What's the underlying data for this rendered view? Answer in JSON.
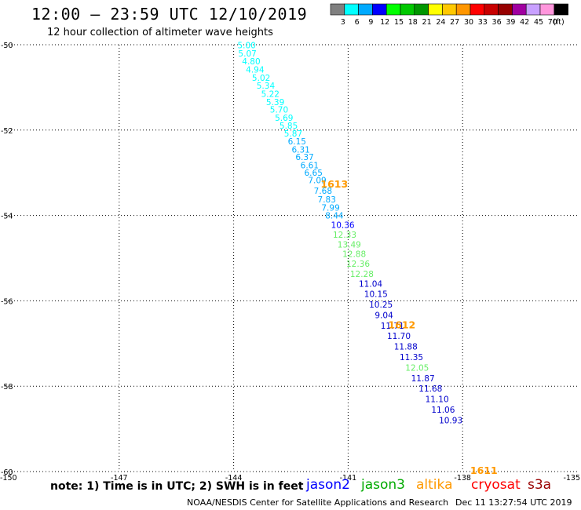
{
  "header": {
    "title": "12:00 – 23:59 UTC 12/10/2019",
    "subtitle": "12 hour collection of altimeter wave heights"
  },
  "legend": {
    "unit": "(ft)",
    "bins": [
      {
        "label": "3",
        "color": "#808080"
      },
      {
        "label": "6",
        "color": "#00ffff"
      },
      {
        "label": "9",
        "color": "#00aaff"
      },
      {
        "label": "12",
        "color": "#0000ff"
      },
      {
        "label": "15",
        "color": "#00ff00"
      },
      {
        "label": "18",
        "color": "#00c800"
      },
      {
        "label": "21",
        "color": "#009600"
      },
      {
        "label": "24",
        "color": "#ffff00"
      },
      {
        "label": "27",
        "color": "#ffc800"
      },
      {
        "label": "30",
        "color": "#ff9600"
      },
      {
        "label": "33",
        "color": "#ff0000"
      },
      {
        "label": "36",
        "color": "#c80000"
      },
      {
        "label": "39",
        "color": "#960000"
      },
      {
        "label": "42",
        "color": "#a000a0"
      },
      {
        "label": "45",
        "color": "#c8a0ff"
      },
      {
        "label": "70",
        "color": "#ff96dc"
      },
      {
        "label": "",
        "color": "#000000"
      }
    ]
  },
  "footer": {
    "note": "note:  1) Time is in UTC;  2) SWH is in feet",
    "satellites": [
      {
        "name": "jason2",
        "color": "#0000ff"
      },
      {
        "name": "jason3",
        "color": "#00aa00"
      },
      {
        "name": "altika",
        "color": "#ff9900"
      },
      {
        "name": "cryosat",
        "color": "#ff0000"
      },
      {
        "name": "s3a",
        "color": "#990000"
      }
    ],
    "credit": "NOAA/NESDIS Center for Satellite Applications and Research",
    "timestamp": "Dec 11 13:27:54 UTC 2019"
  },
  "chart_data": {
    "type": "scatter",
    "xlim": [
      -150,
      -135
    ],
    "ylim": [
      -60,
      -50
    ],
    "x_ticks": [
      "-150",
      "-147",
      "-144",
      "-141",
      "-138",
      "-135"
    ],
    "x_tick_values": [
      -150,
      -147,
      -144,
      -141,
      -138,
      -135
    ],
    "y_ticks": [
      "-50",
      "-52",
      "-54",
      "-56",
      "-58",
      "-60"
    ],
    "y_tick_values": [
      -50,
      -52,
      -54,
      -56,
      -58,
      -60
    ],
    "grid": true,
    "points": [
      {
        "lon": -143.9,
        "lat": -50.01,
        "label": "5.00",
        "color": "#00ffff"
      },
      {
        "lon": -143.88,
        "lat": -50.2,
        "label": "5.07",
        "color": "#00ffff"
      },
      {
        "lon": -143.78,
        "lat": -50.39,
        "label": "4.80",
        "color": "#00ffff"
      },
      {
        "lon": -143.68,
        "lat": -50.58,
        "label": "4.94",
        "color": "#00ffff"
      },
      {
        "lon": -143.52,
        "lat": -50.77,
        "label": "5.02",
        "color": "#00ffff"
      },
      {
        "lon": -143.4,
        "lat": -50.96,
        "label": "5.34",
        "color": "#00ffff"
      },
      {
        "lon": -143.28,
        "lat": -51.15,
        "label": "5.22",
        "color": "#00ffff"
      },
      {
        "lon": -143.15,
        "lat": -51.34,
        "label": "5.39",
        "color": "#00ffff"
      },
      {
        "lon": -143.05,
        "lat": -51.52,
        "label": "5.70",
        "color": "#00ffff"
      },
      {
        "lon": -142.92,
        "lat": -51.71,
        "label": "5.69",
        "color": "#00ffff"
      },
      {
        "lon": -142.8,
        "lat": -51.89,
        "label": "5.85",
        "color": "#00ffff"
      },
      {
        "lon": -142.68,
        "lat": -52.08,
        "label": "5.87",
        "color": "#00ffff"
      },
      {
        "lon": -142.58,
        "lat": -52.26,
        "label": "6.15",
        "color": "#00aaff"
      },
      {
        "lon": -142.48,
        "lat": -52.45,
        "label": "6.31",
        "color": "#00aaff"
      },
      {
        "lon": -142.38,
        "lat": -52.63,
        "label": "6.37",
        "color": "#00aaff"
      },
      {
        "lon": -142.25,
        "lat": -52.82,
        "label": "6.61",
        "color": "#00aaff"
      },
      {
        "lon": -142.15,
        "lat": -53.0,
        "label": "6.65",
        "color": "#00aaff"
      },
      {
        "lon": -142.05,
        "lat": -53.17,
        "label": "7.09",
        "color": "#00aaff"
      },
      {
        "lon": -141.9,
        "lat": -53.42,
        "label": "7.68",
        "color": "#00aaff"
      },
      {
        "lon": -141.8,
        "lat": -53.62,
        "label": "7.83",
        "color": "#00aaff"
      },
      {
        "lon": -141.7,
        "lat": -53.81,
        "label": "7.99",
        "color": "#00aaff"
      },
      {
        "lon": -141.6,
        "lat": -54.0,
        "label": "8.44",
        "color": "#00aaff"
      },
      {
        "lon": -141.45,
        "lat": -54.22,
        "label": "10.36",
        "color": "#0000ff"
      },
      {
        "lon": -141.4,
        "lat": -54.45,
        "label": "12.33",
        "color": "#66ee66"
      },
      {
        "lon": -141.28,
        "lat": -54.68,
        "label": "13.49",
        "color": "#66ee66"
      },
      {
        "lon": -141.15,
        "lat": -54.9,
        "label": "12.88",
        "color": "#66ee66"
      },
      {
        "lon": -141.05,
        "lat": -55.13,
        "label": "12.36",
        "color": "#66ee66"
      },
      {
        "lon": -140.95,
        "lat": -55.37,
        "label": "12.28",
        "color": "#66ee66"
      },
      {
        "lon": -140.72,
        "lat": -55.6,
        "label": "11.04",
        "color": "#0000cc"
      },
      {
        "lon": -140.58,
        "lat": -55.84,
        "label": "10.15",
        "color": "#0000cc"
      },
      {
        "lon": -140.45,
        "lat": -56.08,
        "label": "10.25",
        "color": "#0000cc"
      },
      {
        "lon": -140.3,
        "lat": -56.33,
        "label": "9.04",
        "color": "#0000cc"
      },
      {
        "lon": -140.15,
        "lat": -56.58,
        "label": "11.71",
        "color": "#0000cc"
      },
      {
        "lon": -139.98,
        "lat": -56.82,
        "label": "11.70",
        "color": "#0000cc"
      },
      {
        "lon": -139.8,
        "lat": -57.07,
        "label": "11.88",
        "color": "#0000cc"
      },
      {
        "lon": -139.65,
        "lat": -57.32,
        "label": "11.35",
        "color": "#0000cc"
      },
      {
        "lon": -139.5,
        "lat": -57.56,
        "label": "12.05",
        "color": "#66ee66"
      },
      {
        "lon": -139.35,
        "lat": -57.81,
        "label": "11.87",
        "color": "#0000cc"
      },
      {
        "lon": -139.15,
        "lat": -58.05,
        "label": "11.68",
        "color": "#0000cc"
      },
      {
        "lon": -138.98,
        "lat": -58.3,
        "label": "11.10",
        "color": "#0000cc"
      },
      {
        "lon": -138.82,
        "lat": -58.55,
        "label": "11.06",
        "color": "#0000cc"
      },
      {
        "lon": -138.62,
        "lat": -58.8,
        "label": "10.93",
        "color": "#0000cc"
      }
    ],
    "annotations": [
      {
        "lon": -141.72,
        "lat": -53.25,
        "label": "1613",
        "color": "#ff9900"
      },
      {
        "lon": -139.95,
        "lat": -56.55,
        "label": "1612",
        "color": "#ff9900"
      },
      {
        "lon": -137.8,
        "lat": -59.96,
        "label": "1611",
        "color": "#ff9900"
      }
    ]
  }
}
